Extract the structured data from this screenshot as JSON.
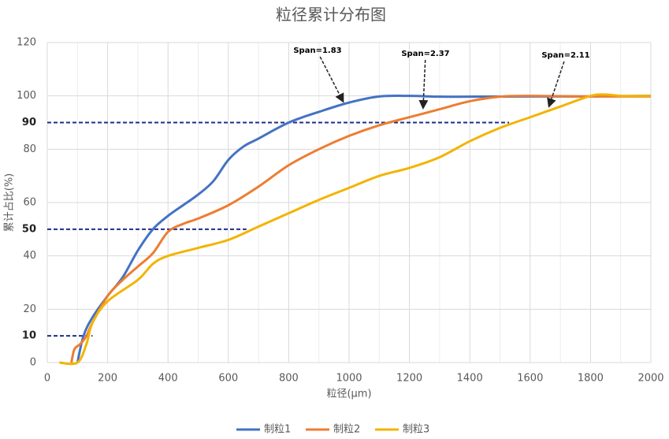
{
  "chart_data": {
    "type": "line",
    "title": "粒径累计分布图",
    "x_label": "粒径(μm)",
    "y_label": "累计占比(%)",
    "xlim": [
      0,
      2000
    ],
    "xticks": [
      0,
      200,
      400,
      600,
      800,
      1000,
      1200,
      1400,
      1600,
      1800,
      2000
    ],
    "xminorticks": [
      100,
      300,
      500,
      700,
      900,
      1100,
      1300,
      1500,
      1700,
      1900
    ],
    "ylim": [
      0,
      120
    ],
    "yticks": [
      0,
      10,
      20,
      40,
      50,
      60,
      80,
      90,
      100,
      120
    ],
    "grid": true,
    "reference_lines": [
      {
        "y": 10,
        "x_end": 150,
        "color": "#1f2d8a"
      },
      {
        "y": 50,
        "x_end": 660,
        "color": "#1f2d8a"
      },
      {
        "y": 90,
        "x_end": 1530,
        "color": "#1f2d8a"
      }
    ],
    "legend": "bottom",
    "series": [
      {
        "name": "制粒1",
        "color": "#4472c4",
        "x": [
          100,
          120,
          150,
          200,
          250,
          300,
          350,
          400,
          450,
          500,
          550,
          600,
          650,
          700,
          800,
          900,
          1000,
          1100,
          1200,
          1300,
          1400,
          1600,
          1800,
          2000
        ],
        "values": [
          0,
          10,
          17,
          25,
          32,
          42,
          50,
          55,
          59,
          63,
          68,
          76,
          81,
          84,
          90,
          94,
          97.5,
          99.8,
          100,
          99.7,
          99.7,
          99.8,
          99.8,
          100
        ]
      },
      {
        "name": "制粒2",
        "color": "#ed7d31",
        "x": [
          80,
          90,
          110,
          130,
          150,
          200,
          250,
          300,
          350,
          400,
          450,
          500,
          600,
          700,
          800,
          900,
          1000,
          1100,
          1200,
          1300,
          1400,
          1500,
          1600,
          1800,
          2000
        ],
        "values": [
          0,
          5,
          7,
          10,
          15,
          25,
          31,
          36,
          41,
          49,
          52,
          54,
          59,
          66,
          74,
          80,
          85,
          89,
          92,
          95,
          98,
          99.7,
          100,
          99.8,
          99.8
        ]
      },
      {
        "name": "制粒3",
        "color": "#f2b400",
        "x": [
          40,
          100,
          130,
          150,
          200,
          300,
          350,
          400,
          500,
          600,
          700,
          800,
          900,
          1000,
          1100,
          1200,
          1300,
          1400,
          1500,
          1600,
          1700,
          1800,
          1850,
          1900,
          2000
        ],
        "values": [
          0,
          0,
          7,
          15,
          23,
          31,
          37,
          40,
          43,
          46,
          51,
          56,
          61,
          65.5,
          70,
          73,
          77,
          83,
          88,
          92,
          96,
          100,
          100.5,
          100,
          100
        ]
      }
    ],
    "annotations": [
      "Span=1.83",
      "Span=2.37",
      "Span=2.11"
    ]
  }
}
